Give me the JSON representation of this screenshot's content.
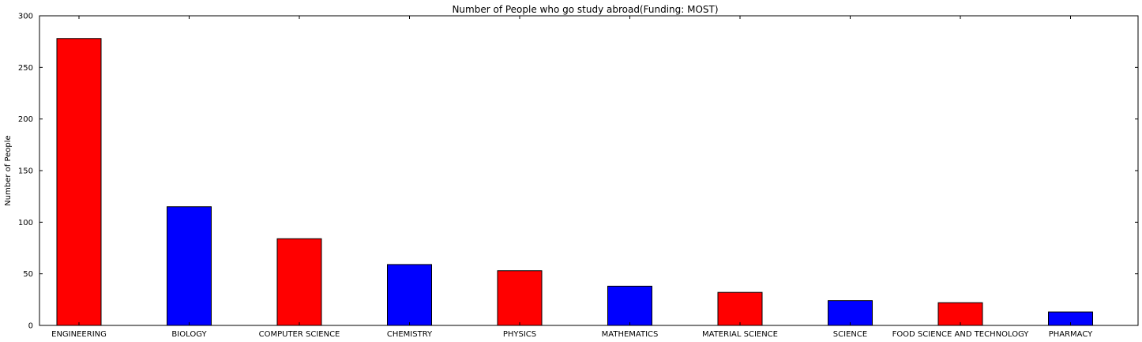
{
  "chart_data": {
    "type": "bar",
    "title": "Number of People who go study abroad(Funding: MOST)",
    "xlabel": "",
    "ylabel": "Number of People",
    "ylim": [
      0,
      300
    ],
    "yticks": [
      0,
      50,
      100,
      150,
      200,
      250,
      300
    ],
    "grid": false,
    "categories": [
      "ENGINEERING",
      "BIOLOGY",
      "COMPUTER SCIENCE",
      "CHEMISTRY",
      "PHYSICS",
      "MATHEMATICS",
      "MATERIAL SCIENCE",
      "SCIENCE",
      "FOOD SCIENCE AND TECHNOLOGY",
      "PHARMACY"
    ],
    "values": [
      278,
      115,
      84,
      59,
      53,
      38,
      32,
      24,
      22,
      13
    ],
    "bar_colors": [
      "#ff0000",
      "#0000ff",
      "#ff0000",
      "#0000ff",
      "#ff0000",
      "#0000ff",
      "#ff0000",
      "#0000ff",
      "#ff0000",
      "#0000ff"
    ]
  }
}
